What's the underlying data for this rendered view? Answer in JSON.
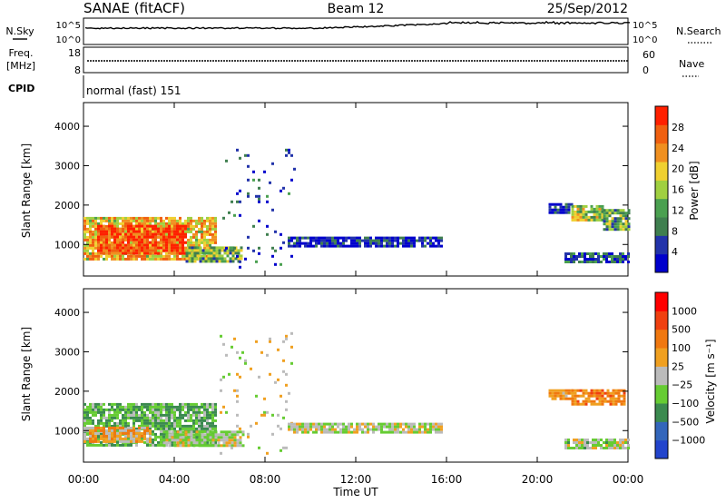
{
  "header": {
    "station": "SANAE (fitACF)",
    "beam": "Beam 12",
    "date": "25/Sep/2012"
  },
  "sky_panel": {
    "left_label": "N.Sky",
    "right_label": "N.Search",
    "left_ticks": [
      "10^5",
      "10^0"
    ],
    "right_ticks": [
      "10^5",
      "10^0"
    ]
  },
  "freq_panel": {
    "left_label_1": "Freq.",
    "left_label_2": "[MHz]",
    "right_label": "Nave",
    "left_ticks": [
      "18",
      "8"
    ],
    "right_ticks": [
      "60",
      "0"
    ]
  },
  "cpid": {
    "label": "CPID",
    "value": "normal (fast) 151"
  },
  "colors": {
    "power_scale": [
      "#0000cc",
      "#2233aa",
      "#3f7f4f",
      "#4aa050",
      "#a0d040",
      "#f0d030",
      "#f09020",
      "#f06010",
      "#ff2000"
    ],
    "velocity_scale": [
      "#2244cc",
      "#3366bb",
      "#3b8a4f",
      "#66cc33",
      "#bbbbbb",
      "#f0a020",
      "#f07810",
      "#f04010",
      "#ff0000"
    ]
  },
  "chart_data": [
    {
      "type": "heatmap",
      "name": "power-panel",
      "ylabel": "Slant Range [km]",
      "ylim": [
        200,
        4600
      ],
      "yticks": [
        "4000",
        "3000",
        "2000",
        "1000"
      ],
      "colorbar": {
        "title": "Power [dB]",
        "ticks": [
          "28",
          "24",
          "20",
          "16",
          "12",
          "8",
          "4"
        ]
      },
      "regions": [
        {
          "t0": 0.0,
          "t1": 5.8,
          "r0": 600,
          "r1": 1700,
          "level": 0.65
        },
        {
          "t0": 0.6,
          "t1": 4.5,
          "r0": 800,
          "r1": 1500,
          "level": 0.9
        },
        {
          "t0": 4.5,
          "t1": 7.0,
          "r0": 600,
          "r1": 950,
          "level": 0.4
        },
        {
          "t0": 6.0,
          "t1": 9.3,
          "r0": 400,
          "r1": 3500,
          "level": 0.15
        },
        {
          "t0": 9.0,
          "t1": 15.8,
          "r0": 950,
          "r1": 1200,
          "level": 0.1
        },
        {
          "t0": 20.5,
          "t1": 21.5,
          "r0": 1800,
          "r1": 2050,
          "level": 0.1
        },
        {
          "t0": 21.5,
          "t1": 22.9,
          "r0": 1650,
          "r1": 2000,
          "level": 0.5
        },
        {
          "t0": 22.9,
          "t1": 24.0,
          "r0": 1350,
          "r1": 1900,
          "level": 0.4
        },
        {
          "t0": 21.2,
          "t1": 24.0,
          "r0": 550,
          "r1": 800,
          "level": 0.2
        }
      ]
    },
    {
      "type": "heatmap",
      "name": "velocity-panel",
      "ylabel": "Slant Range [km]",
      "xlabel": "Time UT",
      "ylim": [
        200,
        4600
      ],
      "yticks": [
        "4000",
        "3000",
        "2000",
        "1000"
      ],
      "xticks": [
        "00:00",
        "04:00",
        "08:00",
        "12:00",
        "16:00",
        "20:00",
        "00:00"
      ],
      "colorbar": {
        "title": "Velocity [m s⁻¹]",
        "ticks": [
          "1000",
          "500",
          "100",
          "25",
          "−25",
          "−100",
          "−500",
          "−1000"
        ]
      },
      "regions": [
        {
          "t0": 0.0,
          "t1": 5.8,
          "r0": 600,
          "r1": 1700,
          "level": 0.35
        },
        {
          "t0": 0.0,
          "t1": 3.0,
          "r0": 700,
          "r1": 1100,
          "level": 0.6
        },
        {
          "t0": 3.5,
          "t1": 7.0,
          "r0": 600,
          "r1": 1000,
          "level": 0.48
        },
        {
          "t0": 6.0,
          "t1": 9.3,
          "r0": 400,
          "r1": 3500,
          "level": 0.5
        },
        {
          "t0": 9.0,
          "t1": 15.8,
          "r0": 950,
          "r1": 1200,
          "level": 0.48
        },
        {
          "t0": 20.5,
          "t1": 21.5,
          "r0": 1800,
          "r1": 2050,
          "level": 0.65
        },
        {
          "t0": 21.5,
          "t1": 23.8,
          "r0": 1650,
          "r1": 2050,
          "level": 0.7
        },
        {
          "t0": 21.2,
          "t1": 24.0,
          "r0": 550,
          "r1": 800,
          "level": 0.45
        }
      ]
    }
  ]
}
